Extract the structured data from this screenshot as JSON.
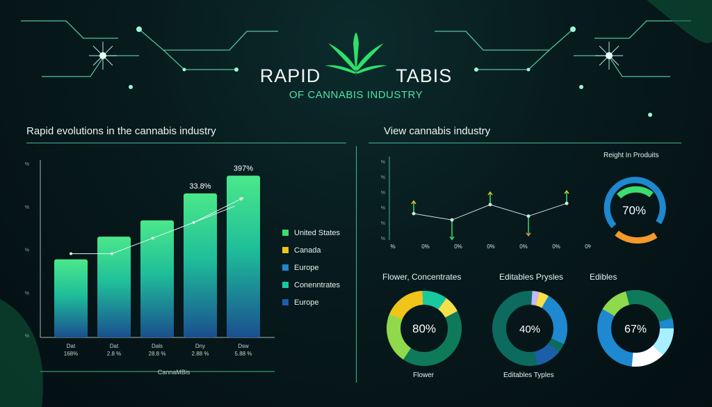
{
  "header": {
    "title_left": "RAPID",
    "title_right": "TABIS",
    "subtitle": "OF CANNABIS INDUSTRY"
  },
  "left_panel": {
    "title": "Rapid evolutions in the cannabis industry",
    "xlabel": "CannaMBis"
  },
  "right_panel": {
    "title": "View cannabis industry",
    "gauge_title": "Reight In Produits"
  },
  "colors": {
    "green": "#3cdc6e",
    "yellow": "#f0c419",
    "blue": "#1e88d0",
    "teal": "#18c9a0",
    "navy": "#1a5fa8",
    "accent": "#4fe3a5"
  },
  "chart_data": [
    {
      "type": "bar",
      "title": "Rapid evolutions in the cannabis industry",
      "xlabel": "CannaMBis",
      "ytick_labels": [
        "%",
        "%",
        "%",
        "%",
        "%"
      ],
      "categories": [
        "Dat 168%",
        "Dat 2.8 %",
        "Dals 28.8 %",
        "Dny 2.88 %",
        "Dsw 5.88 %"
      ],
      "category_top": [
        "Dat",
        "Dat",
        "Dals",
        "Dny",
        "Dsw"
      ],
      "category_bottom": [
        "168%",
        "2.8 %",
        "28.8 %",
        "2.88 %",
        "5.88 %"
      ],
      "values": [
        110,
        142,
        165,
        203,
        228
      ],
      "ylim": [
        0,
        250
      ],
      "bar_labels": [
        "",
        "",
        "",
        "33.8%",
        "397%"
      ],
      "trend_line": [
        118,
        118,
        140,
        162,
        185
      ],
      "legend": [
        "United States",
        "Canada",
        "Europe",
        "Conenntrates",
        "Europe"
      ],
      "legend_colors": [
        "#3cdc6e",
        "#f0c419",
        "#1e88d0",
        "#18c9a0",
        "#1a5fa8"
      ]
    },
    {
      "type": "line",
      "title": "View cannabis industry",
      "ytick_labels": [
        "%",
        "%",
        "%",
        "%",
        "%",
        "%"
      ],
      "xtick_labels": [
        "%",
        "0%",
        "0%",
        "0%",
        "0%",
        "0%",
        "0%"
      ],
      "values": [
        38,
        33,
        45,
        36,
        46
      ],
      "ylim": [
        20,
        80
      ]
    },
    {
      "type": "pie",
      "title": "Reight In Produits",
      "value_label": "70%",
      "value": 70
    },
    {
      "type": "pie",
      "title": "Flower, Concentrates",
      "bottom_label": "Flower",
      "value_label": "80%",
      "value": 80
    },
    {
      "type": "pie",
      "title": "Editables Prysles",
      "bottom_label": "Editables Typles",
      "value_label": "40%",
      "value": 40
    },
    {
      "type": "pie",
      "title": "Edibles",
      "value_label": "67%",
      "value": 67
    }
  ]
}
